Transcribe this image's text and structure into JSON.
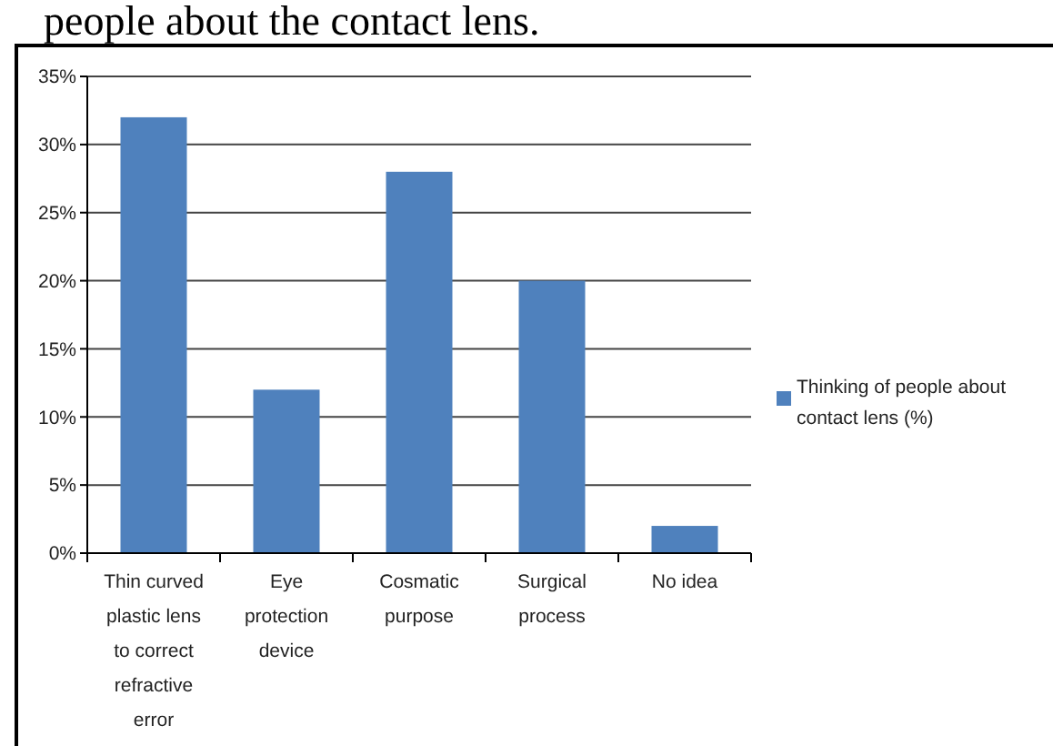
{
  "chart_data": {
    "type": "bar",
    "title": "people about the contact lens.",
    "categories": [
      "Thin curved plastic lens to correct refractive error",
      "Eye protection device",
      "Cosmatic purpose",
      "Surgical process",
      "No idea"
    ],
    "series": [
      {
        "name": "Thinking of people about contact lens (%)",
        "color": "#4f81bd",
        "values": [
          32,
          12,
          28,
          20,
          2
        ]
      }
    ],
    "ylim": [
      0,
      35
    ],
    "yticks": [
      {
        "value": 0,
        "label": "0%"
      },
      {
        "value": 5,
        "label": "5%"
      },
      {
        "value": 10,
        "label": "10%"
      },
      {
        "value": 15,
        "label": "15%"
      },
      {
        "value": 20,
        "label": "20%"
      },
      {
        "value": 25,
        "label": "25%"
      },
      {
        "value": 30,
        "label": "30%"
      },
      {
        "value": 35,
        "label": "35%"
      }
    ],
    "grid": "y",
    "legend": "right"
  }
}
